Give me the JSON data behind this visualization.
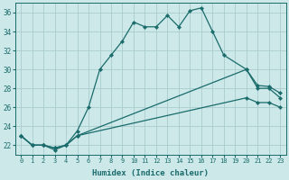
{
  "xlabel": "Humidex (Indice chaleur)",
  "ylabel": "",
  "background_color": "#cce8e8",
  "grid_color": "#aacccc",
  "line_color": "#1a6b6b",
  "xlim": [
    -0.5,
    23.5
  ],
  "ylim": [
    21.0,
    37.0
  ],
  "yticks": [
    22,
    24,
    26,
    28,
    30,
    32,
    34,
    36
  ],
  "xticks": [
    0,
    1,
    2,
    3,
    4,
    5,
    6,
    7,
    8,
    9,
    10,
    11,
    12,
    13,
    14,
    15,
    16,
    17,
    18,
    19,
    20,
    21,
    22,
    23
  ],
  "line1_x": [
    0,
    1,
    2,
    3,
    4,
    5,
    6,
    7,
    8,
    9,
    10,
    11,
    12,
    13,
    14,
    15,
    16,
    17,
    18,
    20,
    21,
    22,
    23
  ],
  "line1_y": [
    23.0,
    22.0,
    22.0,
    21.5,
    22.0,
    23.5,
    26.0,
    30.0,
    31.5,
    33.0,
    35.0,
    34.5,
    34.5,
    35.7,
    34.5,
    36.2,
    36.5,
    34.0,
    31.5,
    30.0,
    28.0,
    28.0,
    27.0
  ],
  "line2_x": [
    0,
    1,
    2,
    3,
    4,
    5,
    20,
    21,
    22,
    23
  ],
  "line2_y": [
    23.0,
    22.0,
    22.0,
    21.7,
    22.0,
    23.0,
    30.0,
    28.3,
    28.2,
    27.5
  ],
  "line3_x": [
    0,
    1,
    2,
    3,
    4,
    5,
    20,
    21,
    22,
    23
  ],
  "line3_y": [
    23.0,
    22.0,
    22.0,
    21.7,
    22.0,
    23.0,
    27.0,
    26.5,
    26.5,
    26.0
  ]
}
